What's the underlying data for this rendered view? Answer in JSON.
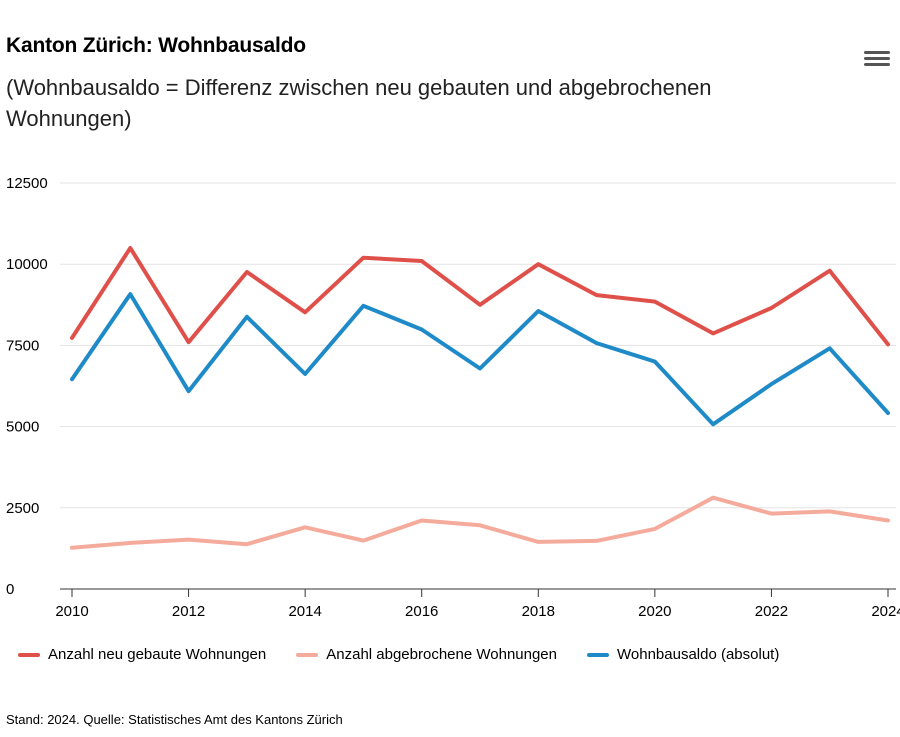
{
  "header": {
    "title": "Kanton Zürich: Wohnbausaldo",
    "subtitle": "(Wohnbausaldo = Differenz zwischen neu gebauten und abgebrochenen Wohnungen)",
    "menu_icon": "hamburger-menu-icon"
  },
  "chart_data": {
    "type": "line",
    "title": "Kanton Zürich: Wohnbausaldo",
    "xlabel": "",
    "ylabel": "",
    "x": [
      2010,
      2011,
      2012,
      2013,
      2014,
      2015,
      2016,
      2017,
      2018,
      2019,
      2020,
      2021,
      2022,
      2023,
      2024
    ],
    "xlim": [
      2010,
      2024
    ],
    "ylim": [
      0,
      12500
    ],
    "x_ticks": [
      "2010",
      "2012",
      "2014",
      "2016",
      "2018",
      "2020",
      "2022",
      "2024"
    ],
    "y_ticks": [
      "0",
      "2500",
      "5000",
      "7500",
      "10000",
      "12500"
    ],
    "grid": true,
    "legend_position": "bottom",
    "series": [
      {
        "name": "Anzahl neu gebaute Wohnungen",
        "color": "#e0504a",
        "values": [
          7730,
          10500,
          7600,
          9760,
          8520,
          10200,
          10100,
          8750,
          10000,
          9050,
          8850,
          7870,
          8650,
          9800,
          7530
        ]
      },
      {
        "name": "Anzahl abgebrochene Wohnungen",
        "color": "#f4ab9c",
        "values": [
          1270,
          1420,
          1520,
          1380,
          1900,
          1490,
          2110,
          1960,
          1450,
          1480,
          1850,
          2810,
          2320,
          2390,
          2110
        ]
      },
      {
        "name": "Wohnbausaldo (absolut)",
        "color": "#1f8ac8",
        "values": [
          6460,
          9080,
          6090,
          8380,
          6620,
          8720,
          7990,
          6790,
          8560,
          7570,
          7000,
          5070,
          6310,
          7410,
          5420
        ]
      }
    ]
  },
  "footer": {
    "source": "Stand: 2024. Quelle: Statistisches Amt des Kantons Zürich"
  }
}
